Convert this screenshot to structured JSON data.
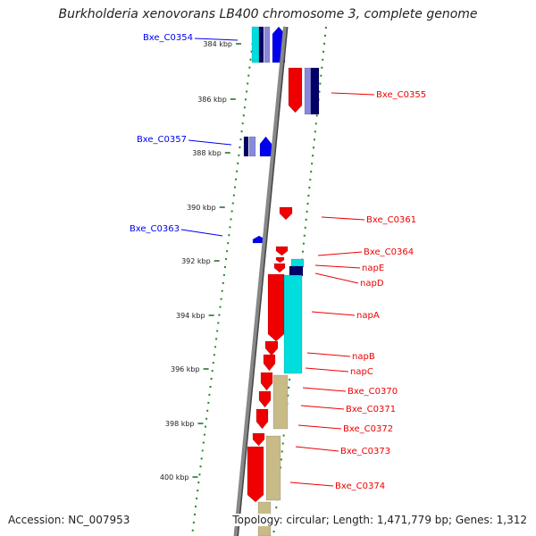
{
  "title": "Burkholderia xenovorans LB400 chromosome 3, complete genome",
  "accession_text": "Accession: NC_007953",
  "summary_text": "Topology: circular; Length: 1,471,779 bp; Genes: 1,312",
  "colors": {
    "forward": "#0000ee",
    "reverse": "#ee0000",
    "backbone": "#888888",
    "gc_dots": "#228822",
    "orf_cyan": "#00dddd",
    "orf_khaki": "#c8bb88",
    "orf_navy": "#000066",
    "orf_lavender": "#8888dd"
  },
  "ticks": [
    {
      "label": "384 kbp"
    },
    {
      "label": "386 kbp"
    },
    {
      "label": "388 kbp"
    },
    {
      "label": "390 kbp"
    },
    {
      "label": "392 kbp"
    },
    {
      "label": "394 kbp"
    },
    {
      "label": "396 kbp"
    },
    {
      "label": "398 kbp"
    },
    {
      "label": "400 kbp"
    }
  ],
  "forward_labels": [
    {
      "name": "Bxe_C0354"
    },
    {
      "name": "Bxe_C0357"
    },
    {
      "name": "Bxe_C0363"
    }
  ],
  "reverse_labels": [
    {
      "name": "Bxe_C0355"
    },
    {
      "name": "Bxe_C0361"
    },
    {
      "name": "Bxe_C0364"
    },
    {
      "name": "napE"
    },
    {
      "name": "napD"
    },
    {
      "name": "napA"
    },
    {
      "name": "napB"
    },
    {
      "name": "napC"
    },
    {
      "name": "Bxe_C0370"
    },
    {
      "name": "Bxe_C0371"
    },
    {
      "name": "Bxe_C0372"
    },
    {
      "name": "Bxe_C0373"
    },
    {
      "name": "Bxe_C0374"
    }
  ]
}
